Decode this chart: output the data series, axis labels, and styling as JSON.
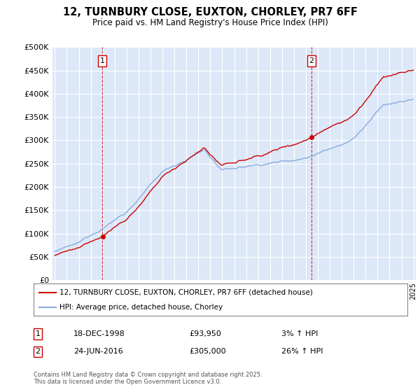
{
  "title": "12, TURNBURY CLOSE, EUXTON, CHORLEY, PR7 6FF",
  "subtitle": "Price paid vs. HM Land Registry's House Price Index (HPI)",
  "legend_line1": "12, TURNBURY CLOSE, EUXTON, CHORLEY, PR7 6FF (detached house)",
  "legend_line2": "HPI: Average price, detached house, Chorley",
  "transaction1_date": "18-DEC-1998",
  "transaction1_price": "£93,950",
  "transaction1_hpi": "3% ↑ HPI",
  "transaction2_date": "24-JUN-2016",
  "transaction2_price": "£305,000",
  "transaction2_hpi": "26% ↑ HPI",
  "footer": "Contains HM Land Registry data © Crown copyright and database right 2025.\nThis data is licensed under the Open Government Licence v3.0.",
  "plot_bg_color": "#dce8f8",
  "grid_color": "#ffffff",
  "hpi_color": "#88aadd",
  "price_color": "#cc0000",
  "dashed_line_color": "#cc0000",
  "ylim_min": 0,
  "ylim_max": 500000,
  "ytick_step": 50000,
  "year_start": 1995,
  "year_end": 2025,
  "transaction1_year": 1998.96,
  "transaction2_year": 2016.48,
  "transaction1_price_val": 93950,
  "transaction2_price_val": 305000
}
